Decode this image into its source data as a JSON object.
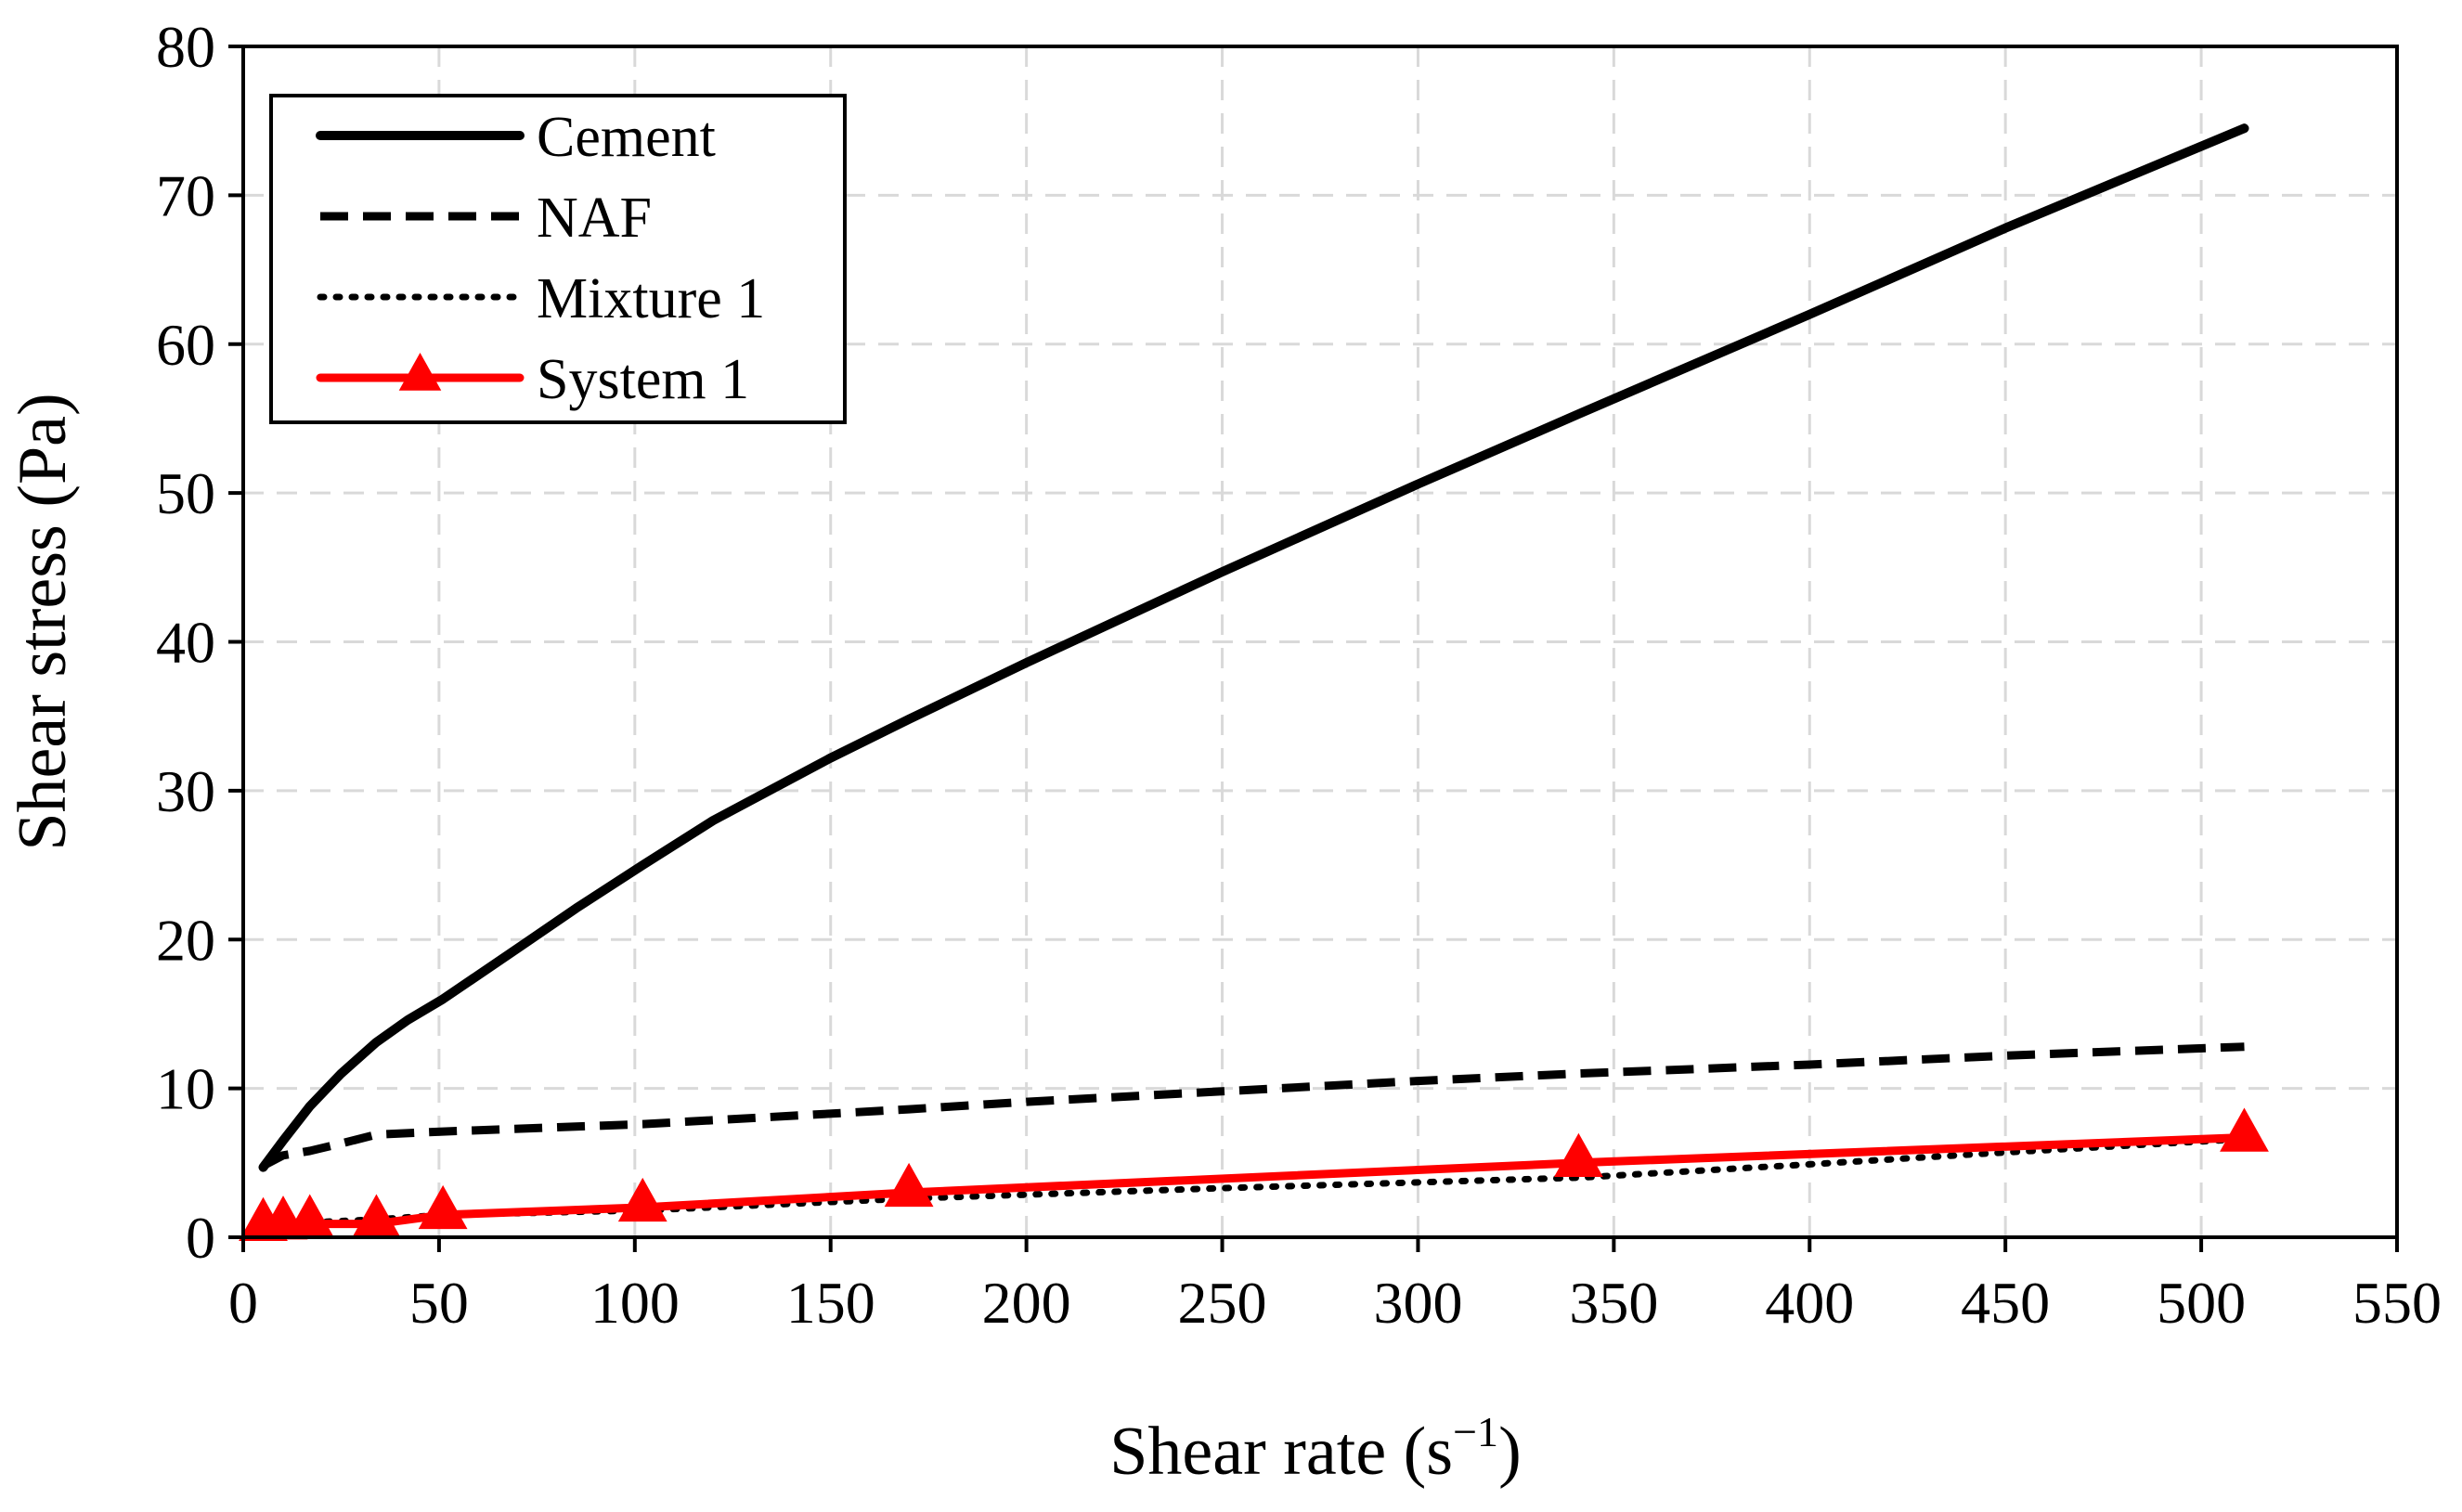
{
  "chart_data": {
    "type": "line",
    "title": "",
    "xlabel": "Shear rate (s",
    "xlabel_sup": "−1",
    "xlabel_close": ")",
    "ylabel": "Shear stress (Pa)",
    "xlim": [
      0,
      550
    ],
    "ylim": [
      0,
      80
    ],
    "xticks": [
      0,
      50,
      100,
      150,
      200,
      250,
      300,
      350,
      400,
      450,
      500,
      550
    ],
    "yticks": [
      0,
      10,
      20,
      30,
      40,
      50,
      60,
      70,
      80
    ],
    "grid": true,
    "legend_position": "top-left",
    "series": [
      {
        "name": "Cement",
        "style": "solid",
        "color": "#000000",
        "marker": "none",
        "x": [
          5.1,
          10.2,
          17,
          25,
          34,
          42,
          51,
          70,
          85,
          102,
          120,
          150,
          170,
          200,
          250,
          300,
          341,
          400,
          450,
          511
        ],
        "y": [
          4.7,
          6.5,
          8.8,
          11,
          13.1,
          14.6,
          16,
          19.4,
          22.1,
          25,
          28,
          32.2,
          34.8,
          38.6,
          44.7,
          50.6,
          55.3,
          62,
          67.8,
          74.5
        ]
      },
      {
        "name": "NAF",
        "style": "dashed",
        "color": "#000000",
        "marker": "none",
        "x": [
          5.1,
          10.2,
          17,
          25,
          34,
          51,
          102,
          170,
          200,
          250,
          300,
          341,
          400,
          450,
          511
        ],
        "y": [
          4.8,
          5.5,
          5.8,
          6.3,
          6.9,
          7.1,
          7.6,
          8.6,
          9.1,
          9.8,
          10.5,
          11,
          11.6,
          12.2,
          12.8
        ]
      },
      {
        "name": "Mixture 1",
        "style": "dotted",
        "color": "#000000",
        "marker": "none",
        "x": [
          5.1,
          10.2,
          17,
          34,
          51,
          102,
          170,
          250,
          341,
          400,
          450,
          511
        ],
        "y": [
          0.8,
          0.9,
          1,
          1.2,
          1.5,
          1.8,
          2.6,
          3.3,
          4,
          4.9,
          5.7,
          6.6
        ]
      },
      {
        "name": "System 1",
        "style": "solid",
        "color": "#ff0000",
        "marker": "triangle",
        "x": [
          5.1,
          10.2,
          17,
          34,
          51,
          102,
          170,
          341,
          511
        ],
        "y": [
          0.7,
          0.8,
          0.9,
          0.9,
          1.5,
          2,
          3,
          5,
          6.7
        ]
      }
    ]
  }
}
